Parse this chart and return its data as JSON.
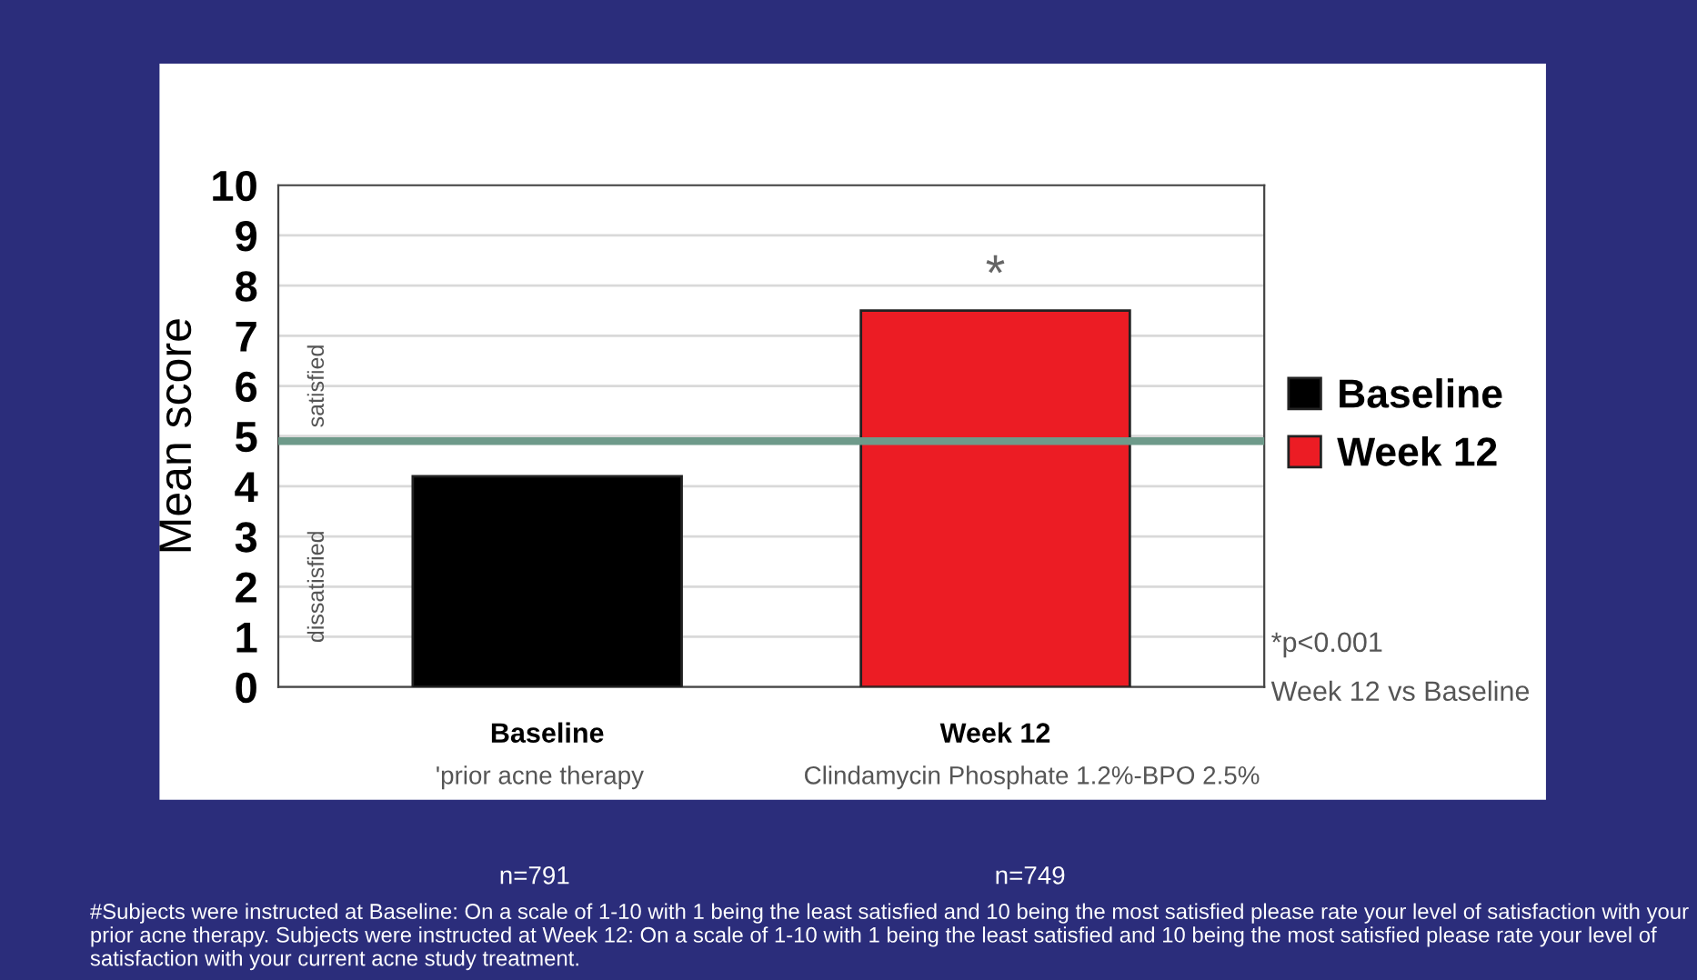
{
  "chart_data": {
    "type": "bar",
    "ylabel": "Mean score",
    "categories": [
      "Baseline",
      "Week 12"
    ],
    "series": [
      {
        "name": "Baseline",
        "color": "#000000",
        "values": [
          4.2,
          null
        ]
      },
      {
        "name": "Week 12",
        "color": "#ec1c24",
        "values": [
          null,
          7.5
        ]
      }
    ],
    "ylim": [
      0,
      10
    ],
    "yticks": [
      0,
      1,
      2,
      3,
      4,
      5,
      6,
      7,
      8,
      9,
      10
    ],
    "grid": "y",
    "legend": "right",
    "ref_lines": [
      {
        "axis": "y",
        "value": 4.9,
        "color": "#6e9a8a"
      }
    ],
    "annotations": [
      {
        "text": "*",
        "x": "Week 12",
        "y": 7.5
      },
      "satisfied",
      "dissatisfied",
      "'prior acne therapy",
      "Clindamycin Phosphate 1.2%-BPO 2.5%",
      "*p<0.001",
      "Week 12 vs Baseline",
      "n=791",
      "n=749",
      "#Subjects were instructed at Baseline: On a scale of 1-10 with 1 being the least satisfied and 10 being the most satisfied please rate your level of satisfaction with your prior acne therapy. Subjects were instructed at Week 12: On a scale of 1-10 with 1 being the least satisfied and 10 being the most satisfied please rate your level of satisfaction with your current acne study treatment."
    ]
  }
}
